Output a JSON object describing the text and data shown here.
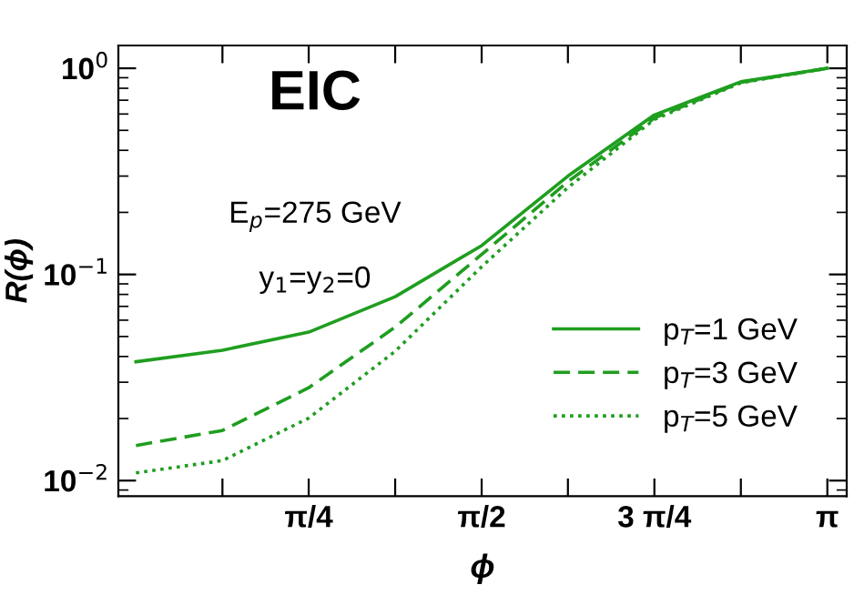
{
  "chart_data": {
    "type": "line",
    "xlabel": "ϕ",
    "ylabel": "R(ϕ)",
    "annotations": [
      "EIC",
      "E$_{p}$=275 GeV",
      "y$_{1}$=y$_{2}$=0"
    ],
    "x": [
      0,
      0.393,
      0.785,
      1.178,
      1.571,
      1.963,
      2.356,
      2.749,
      3.142
    ],
    "series": [
      {
        "name": "p$_{T}$=1 GeV",
        "color": "#1f9e1f",
        "line_style": "solid",
        "values": [
          0.0377,
          0.0429,
          0.0525,
          0.078,
          0.138,
          0.3,
          0.594,
          0.86,
          1.0
        ]
      },
      {
        "name": "p$_{T}$=3 GeV",
        "color": "#1f9e1f",
        "line_style": "dashed",
        "values": [
          0.0148,
          0.0175,
          0.0282,
          0.0555,
          0.125,
          0.282,
          0.574,
          0.855,
          1.0
        ]
      },
      {
        "name": "p$_{T}$=5 GeV",
        "color": "#1f9e1f",
        "line_style": "dotted",
        "values": [
          0.0109,
          0.0125,
          0.0201,
          0.0424,
          0.109,
          0.264,
          0.565,
          0.85,
          1.0
        ]
      }
    ],
    "log": "y",
    "xlim": [
      -0.08,
      3.23
    ],
    "ylim": [
      0.0084,
      1.29
    ],
    "xticks": [
      {
        "value": 0.393,
        "label": null
      },
      {
        "value": 0.785,
        "label": "π/4"
      },
      {
        "value": 1.178,
        "label": null
      },
      {
        "value": 1.571,
        "label": "π/2"
      },
      {
        "value": 1.963,
        "label": null
      },
      {
        "value": 2.356,
        "label": "3 π/4"
      },
      {
        "value": 2.749,
        "label": null
      },
      {
        "value": 3.142,
        "label": "π"
      }
    ],
    "yticks": [
      {
        "value": 0.01,
        "label": "10$^{−2}$"
      },
      {
        "value": 0.1,
        "label": "10$^{−1}$"
      },
      {
        "value": 1,
        "label": "10$^{0}$"
      }
    ],
    "grid": false,
    "legend": "bottom right",
    "marker": "none"
  }
}
